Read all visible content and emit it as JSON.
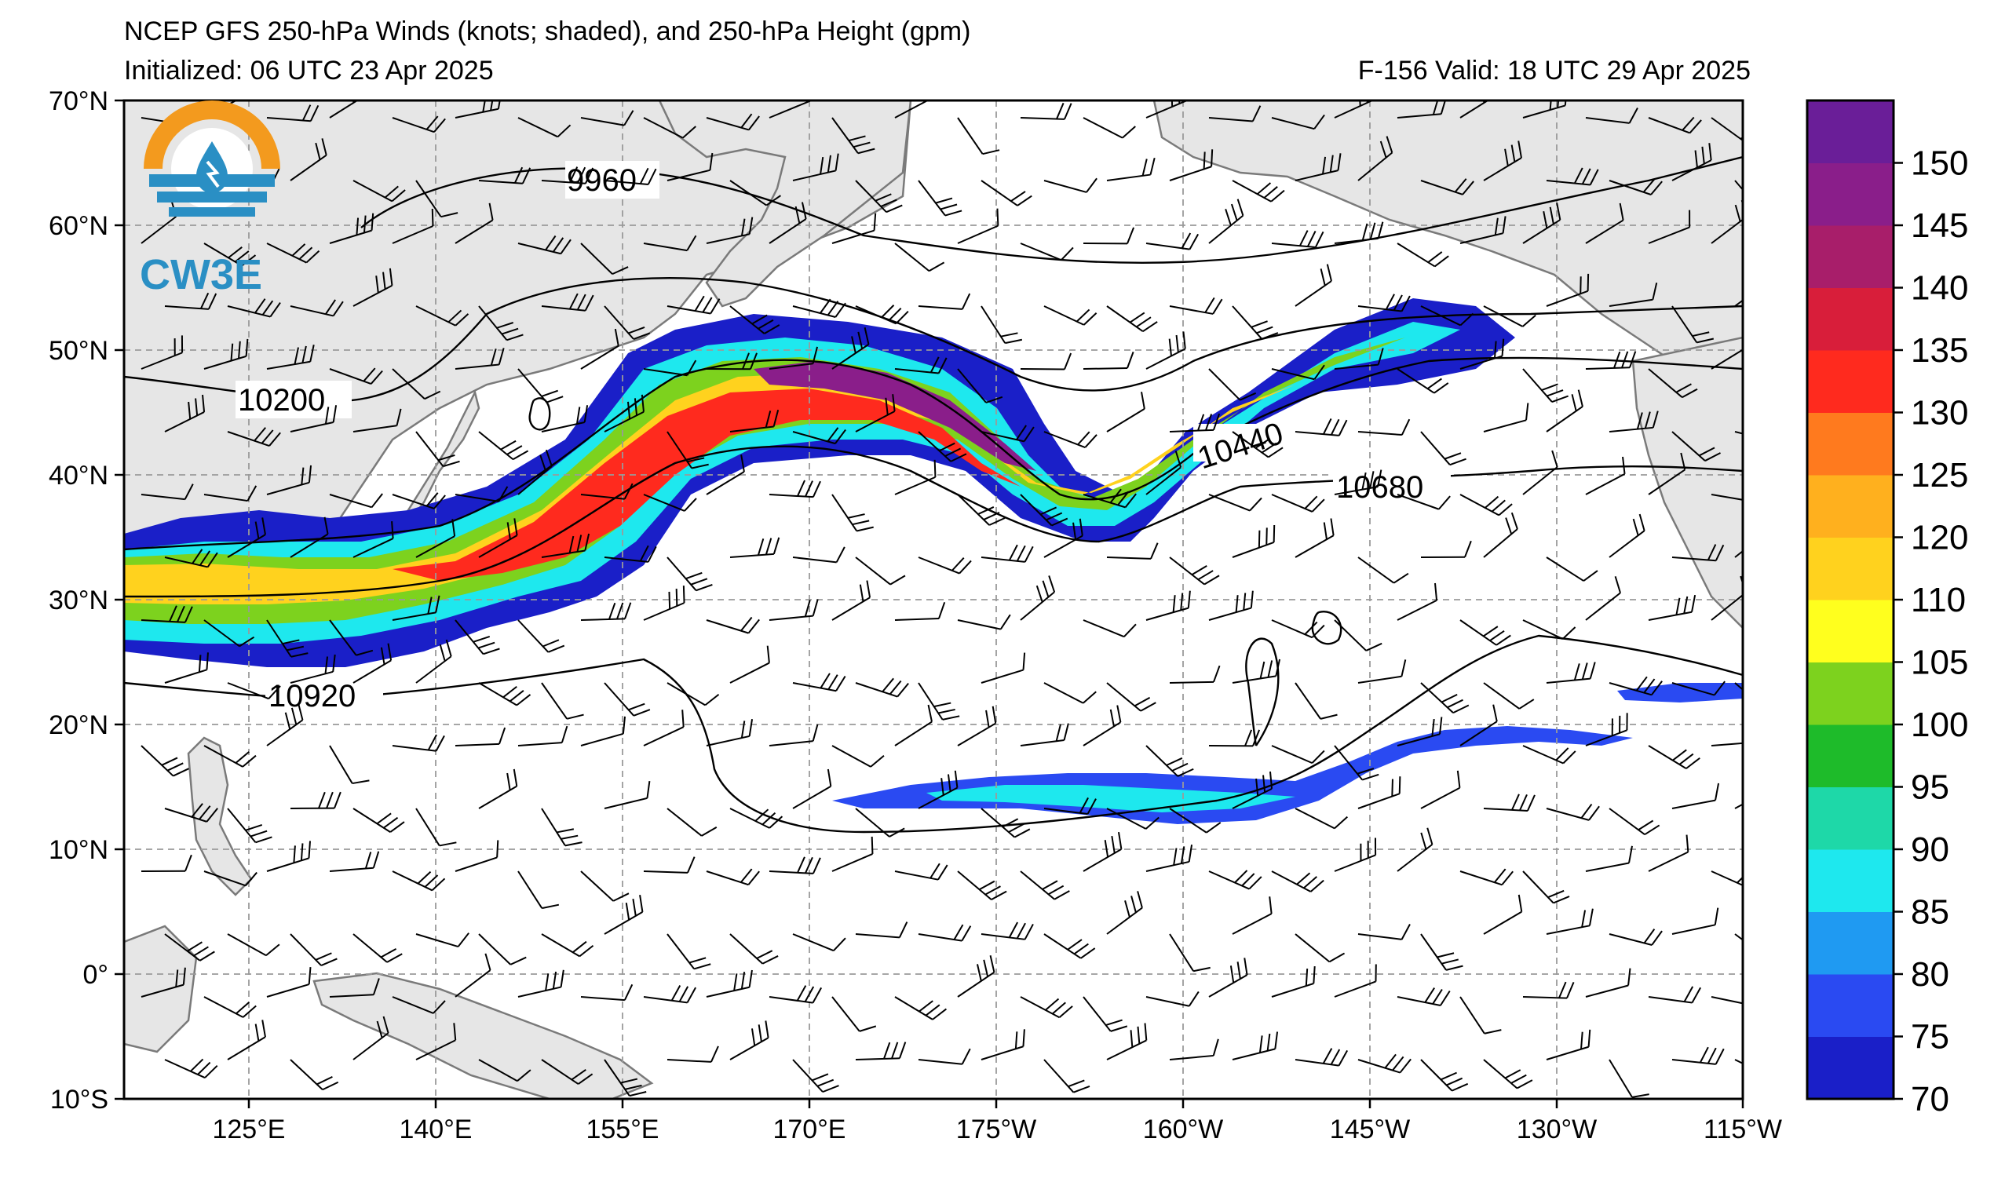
{
  "title": {
    "line1": "NCEP GFS 250-hPa Winds (knots; shaded), and 250-hPa Height (gpm)",
    "line2_left": "Initialized: 06 UTC 23 Apr 2025",
    "line2_right": "F-156  Valid: 18 UTC 29 Apr 2025"
  },
  "logo": {
    "text": "CW3E",
    "icon": "cw3e-logo-icon"
  },
  "map": {
    "projection": "cylindrical",
    "lon_range": [
      115,
      245
    ],
    "lat_range": [
      -10,
      70
    ],
    "lat_ticks": [
      "70°N",
      "60°N",
      "50°N",
      "40°N",
      "30°N",
      "20°N",
      "10°N",
      "0°",
      "10°S"
    ],
    "lon_ticks": [
      "125°E",
      "140°E",
      "155°E",
      "170°E",
      "175°W",
      "160°W",
      "145°W",
      "130°W",
      "115°W"
    ],
    "gridlines": true
  },
  "contours": {
    "variable": "250-hPa Height (gpm)",
    "labels": [
      "9960",
      "10200",
      "10440",
      "10680",
      "10920"
    ]
  },
  "colorbar": {
    "variable": "250-hPa Winds (knots)",
    "levels": [
      70,
      75,
      80,
      85,
      90,
      95,
      100,
      105,
      110,
      120,
      125,
      130,
      135,
      140,
      145,
      150
    ],
    "tick_labels": [
      "70",
      "75",
      "80",
      "85",
      "90",
      "95",
      "100",
      "105",
      "110",
      "120",
      "125",
      "130",
      "135",
      "140",
      "145",
      "150"
    ],
    "colors": [
      "#1a1fc8",
      "#2a4af2",
      "#1f9af2",
      "#1ee8ee",
      "#1ed8a8",
      "#1ebb2a",
      "#7dd21e",
      "#ffff1e",
      "#ffd21e",
      "#ffb01e",
      "#ff7a1e",
      "#ff2a1e",
      "#d81e3a",
      "#a81e6a",
      "#8a1e8a",
      "#6a1e98"
    ]
  }
}
